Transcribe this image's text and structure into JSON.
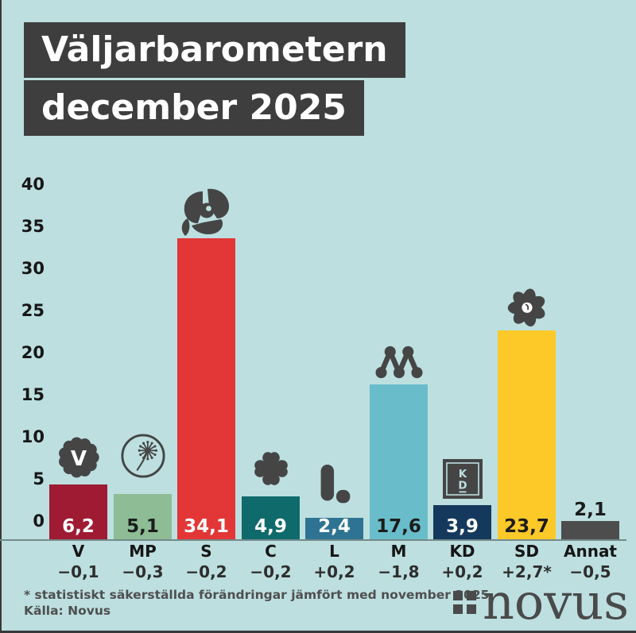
{
  "title": {
    "line1": "Väljarbarometern",
    "line2": "december 2025"
  },
  "chart_data": {
    "type": "bar",
    "title": "Väljarbarometern december 2025",
    "ylabel": "",
    "xlabel": "",
    "ylim": [
      0,
      40
    ],
    "grid": false,
    "y_ticks": [
      40,
      35,
      30,
      25,
      20,
      15,
      10,
      5,
      0
    ],
    "categories": [
      "V",
      "MP",
      "S",
      "C",
      "L",
      "M",
      "KD",
      "SD",
      "Annat"
    ],
    "values": [
      6.2,
      5.1,
      34.1,
      4.9,
      2.4,
      17.6,
      3.9,
      23.7,
      2.1
    ],
    "bars": [
      {
        "party": "V",
        "value": 6.2,
        "value_label": "6,2",
        "change": "−0,1",
        "color": "#9e1b33",
        "value_text_color": "#ffffff",
        "value_label_position": "inside",
        "icon": "vansterpartiet-carnation-icon"
      },
      {
        "party": "MP",
        "value": 5.1,
        "value_label": "5,1",
        "change": "−0,3",
        "color": "#8dbc95",
        "value_text_color": "#1c1c1c",
        "value_label_position": "inside",
        "icon": "miljopartiet-dandelion-icon"
      },
      {
        "party": "S",
        "value": 34.1,
        "value_label": "34,1",
        "change": "−0,2",
        "color": "#e23637",
        "value_text_color": "#ffffff",
        "value_label_position": "inside",
        "icon": "socialdemokraterna-rose-icon"
      },
      {
        "party": "C",
        "value": 4.9,
        "value_label": "4,9",
        "change": "−0,2",
        "color": "#0f6a6b",
        "value_text_color": "#ffffff",
        "value_label_position": "inside",
        "icon": "centerpartiet-clover-icon"
      },
      {
        "party": "L",
        "value": 2.4,
        "value_label": "2,4",
        "change": "+0,2",
        "color": "#2e7492",
        "value_text_color": "#ffffff",
        "value_label_position": "inside",
        "icon": "liberalerna-l-icon"
      },
      {
        "party": "M",
        "value": 17.6,
        "value_label": "17,6",
        "change": "−1,8",
        "color": "#69bdca",
        "value_text_color": "#1c1c1c",
        "value_label_position": "inside",
        "icon": "moderaterna-m-icon"
      },
      {
        "party": "KD",
        "value": 3.9,
        "value_label": "3,9",
        "change": "+0,2",
        "color": "#14395c",
        "value_text_color": "#ffffff",
        "value_label_position": "inside",
        "icon": "kristdemokraterna-kd-icon"
      },
      {
        "party": "SD",
        "value": 23.7,
        "value_label": "23,7",
        "change": "+2,7*",
        "color": "#fcc928",
        "value_text_color": "#1c1c1c",
        "value_label_position": "inside",
        "icon": "sverigedemokraterna-flower-icon"
      },
      {
        "party": "Annat",
        "value": 2.1,
        "value_label": "2,1",
        "change": "−0,5",
        "color": "#4d4d4d",
        "value_text_color": "#1c1c1c",
        "value_label_position": "above",
        "icon": null
      }
    ]
  },
  "footer": {
    "note": "* statistiskt säkerställda förändringar jämfört med november 2025.",
    "source": "Källa: Novus"
  },
  "brand": {
    "name": "novus"
  },
  "colors": {
    "background": "#bddfe0",
    "title_box": "#3e3e3e",
    "title_text": "#ffffff",
    "icon_gray": "#454545",
    "axis_line": "#748a8a",
    "text_dark": "#161616",
    "footer_text": "#4f4f4f"
  }
}
